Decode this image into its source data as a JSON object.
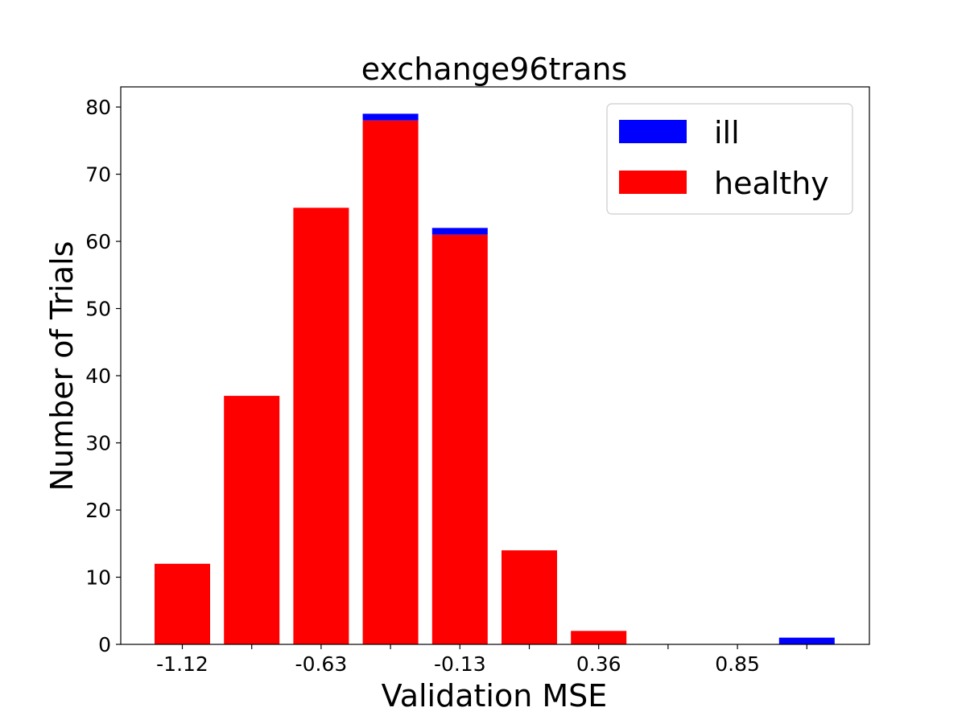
{
  "chart_data": {
    "type": "bar",
    "stacked": true,
    "title": "exchange96trans",
    "xlabel": "Validation MSE",
    "ylabel": "Number of Trials",
    "categories": [
      "-1.12",
      "",
      "-0.63",
      "",
      "-0.13",
      "",
      "0.36",
      "",
      "0.85",
      ""
    ],
    "x_tick_labels": [
      "-1.12",
      "-0.63",
      "-0.13",
      "0.36",
      "0.85"
    ],
    "y_ticks": [
      0,
      10,
      20,
      30,
      40,
      50,
      60,
      70,
      80
    ],
    "ylim": [
      0,
      83
    ],
    "series": [
      {
        "name": "healthy",
        "color": "#ff0000",
        "values": [
          12,
          37,
          65,
          78,
          61,
          14,
          2,
          0,
          0,
          0
        ]
      },
      {
        "name": "ill",
        "color": "#0000ff",
        "values": [
          0,
          0,
          0,
          1,
          1,
          0,
          0,
          0,
          0,
          1
        ]
      }
    ],
    "legend": {
      "placement": "top-right",
      "order": [
        "ill",
        "healthy"
      ]
    },
    "grid": false
  }
}
